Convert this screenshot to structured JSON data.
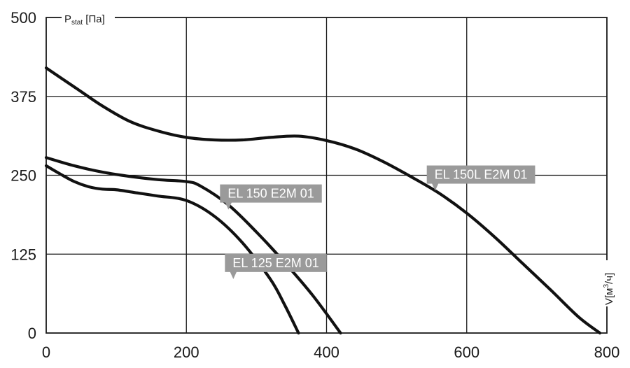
{
  "chart_data": {
    "type": "line",
    "title": "",
    "xlabel": "V[м³/ч]",
    "ylabel": "Pstat [Па]",
    "ylabel_parts": {
      "main": "P",
      "sub": "stat",
      "unit": " [Па]"
    },
    "xlabel_parts": {
      "main": "V[м",
      "sup": "3",
      "unit": "/ч]"
    },
    "xlim": [
      0,
      800
    ],
    "ylim": [
      0,
      500
    ],
    "x_ticks": [
      0,
      200,
      400,
      600,
      800
    ],
    "x_tick_labels": [
      "0",
      "200",
      "400",
      "600",
      "800"
    ],
    "y_ticks": [
      0,
      125,
      250,
      375,
      500
    ],
    "y_tick_labels": [
      "0",
      "125",
      "250",
      "375",
      "500"
    ],
    "grid": true,
    "series": [
      {
        "name": "EL 125 E2M 01",
        "x": [
          0,
          20,
          40,
          60,
          80,
          100,
          130,
          160,
          200,
          240,
          280,
          320,
          340,
          360
        ],
        "y": [
          265,
          252,
          240,
          232,
          228,
          227,
          222,
          217,
          210,
          185,
          143,
          85,
          45,
          0
        ]
      },
      {
        "name": "EL 150 E2M 01",
        "x": [
          0,
          40,
          80,
          120,
          160,
          200,
          220,
          260,
          300,
          340,
          380,
          420
        ],
        "y": [
          278,
          265,
          255,
          248,
          243,
          240,
          233,
          203,
          160,
          112,
          60,
          0
        ]
      },
      {
        "name": "EL 150L E2M 01",
        "x": [
          0,
          40,
          80,
          120,
          160,
          200,
          240,
          280,
          320,
          360,
          400,
          440,
          480,
          520,
          560,
          600,
          640,
          680,
          720,
          760,
          790
        ],
        "y": [
          420,
          390,
          360,
          335,
          320,
          310,
          306,
          306,
          310,
          312,
          305,
          292,
          272,
          248,
          222,
          190,
          152,
          110,
          68,
          25,
          0
        ]
      }
    ],
    "annotations": [
      {
        "text": "EL 150L E2M 01",
        "series": "EL 150L E2M 01",
        "anchor_x": 555,
        "anchor_y": 230
      },
      {
        "text": "EL 150 E2M 01",
        "series": "EL 150 E2M 01",
        "anchor_x": 260,
        "anchor_y": 200
      },
      {
        "text": "EL 125 E2M 01",
        "series": "EL 125 E2M 01",
        "anchor_x": 267,
        "anchor_y": 90
      }
    ]
  }
}
